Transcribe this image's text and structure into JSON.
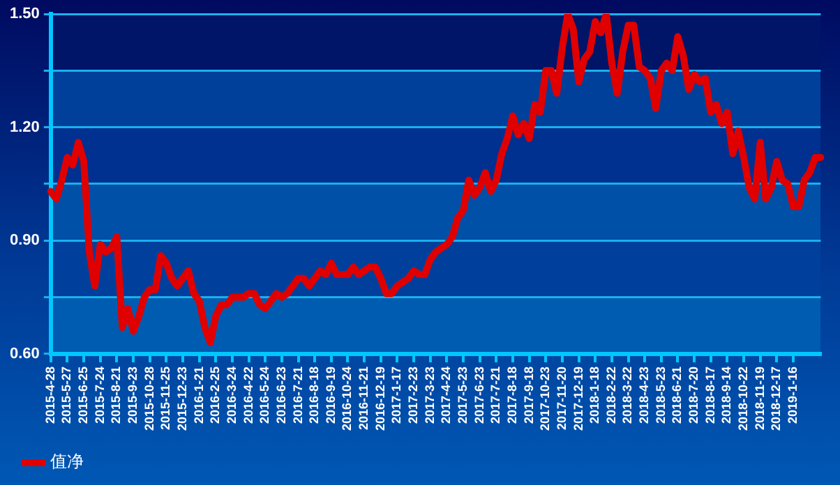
{
  "chart_data": {
    "type": "line",
    "categories": [
      "2015-4-28",
      null,
      null,
      "2015-5-27",
      null,
      null,
      "2015-6-25",
      null,
      null,
      "2015-7-24",
      null,
      null,
      "2015-8-21",
      null,
      null,
      "2015-9-23",
      null,
      null,
      "2015-10-28",
      null,
      null,
      "2015-11-25",
      null,
      null,
      "2015-12-23",
      null,
      null,
      "2016-1-21",
      null,
      null,
      "2016-2-25",
      null,
      null,
      "2016-3-24",
      null,
      null,
      "2016-4-22",
      null,
      null,
      "2016-5-24",
      null,
      null,
      "2016-6-23",
      null,
      null,
      "2016-7-21",
      null,
      null,
      "2016-8-18",
      null,
      null,
      "2016-9-19",
      null,
      null,
      "2016-10-24",
      null,
      null,
      "2016-11-21",
      null,
      null,
      "2016-12-19",
      null,
      null,
      "2017-1-17",
      null,
      null,
      "2017-2-23",
      null,
      null,
      "2017-3-23",
      null,
      null,
      "2017-4-24",
      null,
      null,
      "2017-5-23",
      null,
      null,
      "2017-6-23",
      null,
      null,
      "2017-7-21",
      null,
      null,
      "2017-8-18",
      null,
      null,
      "2017-9-18",
      null,
      null,
      "2017-10-23",
      null,
      null,
      "2017-11-20",
      null,
      null,
      "2017-12-19",
      null,
      null,
      "2018-1-18",
      null,
      null,
      "2018-2-22",
      null,
      null,
      "2018-3-22",
      null,
      null,
      "2018-4-23",
      null,
      null,
      "2018-5-23",
      null,
      null,
      "2018-6-21",
      null,
      null,
      "2018-7-20",
      null,
      null,
      "2018-8-17",
      null,
      null,
      "2018-9-14",
      null,
      null,
      "2018-10-22",
      null,
      null,
      "2018-11-19",
      null,
      null,
      "2018-12-17",
      null,
      null,
      "2019-1-16",
      null,
      null,
      null,
      null,
      null
    ],
    "series": [
      {
        "name": "值净",
        "color": "#e00000",
        "values": [
          1.03,
          1.01,
          1.06,
          1.12,
          1.1,
          1.16,
          1.11,
          0.87,
          0.78,
          0.89,
          0.87,
          0.88,
          0.91,
          0.67,
          0.72,
          0.66,
          0.7,
          0.75,
          0.77,
          0.77,
          0.86,
          0.84,
          0.8,
          0.78,
          0.8,
          0.82,
          0.76,
          0.74,
          0.67,
          0.63,
          0.7,
          0.73,
          0.73,
          0.75,
          0.75,
          0.75,
          0.76,
          0.76,
          0.73,
          0.72,
          0.74,
          0.76,
          0.75,
          0.76,
          0.78,
          0.8,
          0.8,
          0.78,
          0.8,
          0.82,
          0.81,
          0.84,
          0.81,
          0.81,
          0.81,
          0.83,
          0.81,
          0.82,
          0.83,
          0.83,
          0.8,
          0.76,
          0.76,
          0.78,
          0.79,
          0.8,
          0.82,
          0.81,
          0.81,
          0.85,
          0.87,
          0.88,
          0.89,
          0.91,
          0.96,
          0.98,
          1.06,
          1.02,
          1.04,
          1.08,
          1.03,
          1.06,
          1.13,
          1.17,
          1.23,
          1.18,
          1.21,
          1.17,
          1.26,
          1.24,
          1.35,
          1.35,
          1.29,
          1.41,
          1.5,
          1.46,
          1.32,
          1.38,
          1.4,
          1.48,
          1.45,
          1.5,
          1.37,
          1.29,
          1.4,
          1.47,
          1.47,
          1.36,
          1.35,
          1.33,
          1.25,
          1.35,
          1.37,
          1.35,
          1.44,
          1.39,
          1.3,
          1.34,
          1.32,
          1.33,
          1.24,
          1.26,
          1.21,
          1.24,
          1.13,
          1.19,
          1.12,
          1.04,
          1.01,
          1.16,
          1.01,
          1.04,
          1.11,
          1.06,
          1.05,
          0.99,
          0.99,
          1.06,
          1.08,
          1.12,
          1.12
        ]
      }
    ],
    "ylim": [
      0.6,
      1.5
    ],
    "yticks": [
      {
        "value": 0.6,
        "label": "0.60"
      },
      {
        "value": 0.75,
        "label": null
      },
      {
        "value": 0.9,
        "label": "0.90"
      },
      {
        "value": 1.05,
        "label": null
      },
      {
        "value": 1.2,
        "label": "1.20"
      },
      {
        "value": 1.35,
        "label": null
      },
      {
        "value": 1.5,
        "label": "1.50"
      }
    ],
    "grid": "y",
    "legend": "bottom left"
  }
}
